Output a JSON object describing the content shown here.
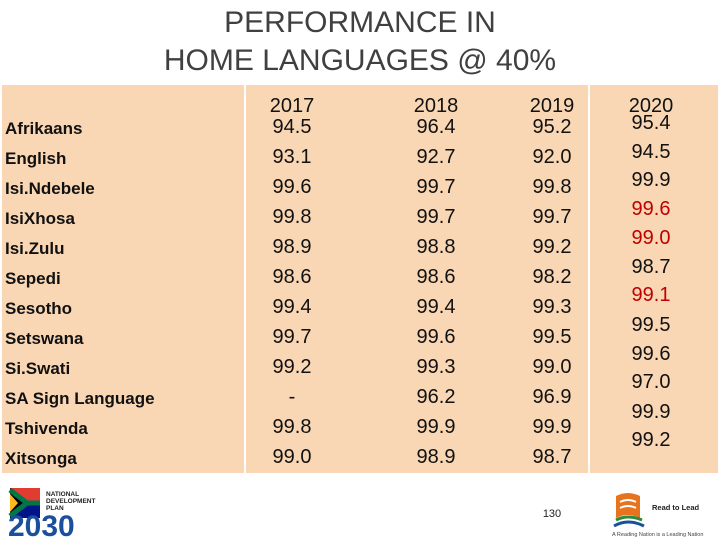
{
  "title": {
    "line1": "PERFORMANCE IN",
    "line2": "HOME LANGUAGES @ 40%"
  },
  "table": {
    "columns": [
      "2017",
      "2018",
      "2019",
      "2020"
    ],
    "rows": [
      {
        "language": "Afrikaans",
        "values": [
          "94.5",
          "96.4",
          "95.2",
          "95.4"
        ]
      },
      {
        "language": "English",
        "values": [
          "93.1",
          "92.7",
          "92.0",
          "94.5"
        ]
      },
      {
        "language": "Isi.Ndebele",
        "values": [
          "99.6",
          "99.7",
          "99.8",
          "99.9"
        ]
      },
      {
        "language": "IsiXhosa",
        "values": [
          "99.8",
          "99.7",
          "99.7",
          "99.6"
        ]
      },
      {
        "language": "Isi.Zulu",
        "values": [
          "98.9",
          "98.8",
          "99.2",
          "99.0"
        ]
      },
      {
        "language": "Sepedi",
        "values": [
          "98.6",
          "98.6",
          "98.2",
          "98.7"
        ]
      },
      {
        "language": "Sesotho",
        "values": [
          "99.4",
          "99.4",
          "99.3",
          "99.1"
        ]
      },
      {
        "language": "Setswana",
        "values": [
          "99.7",
          "99.6",
          "99.5",
          "99.5"
        ]
      },
      {
        "language": "Si.Swati",
        "values": [
          "99.2",
          "99.3",
          "99.0",
          "99.6"
        ]
      },
      {
        "language": "SA Sign Language",
        "values": [
          "-",
          "96.2",
          "96.9",
          "97.0"
        ]
      },
      {
        "language": "Tshivenda",
        "values": [
          "99.8",
          "99.9",
          "99.9",
          "99.9"
        ]
      },
      {
        "language": "Xitsonga",
        "values": [
          "99.0",
          "98.9",
          "98.7",
          "99.2"
        ]
      }
    ],
    "highlight_color": "#c00000"
  },
  "footer": {
    "page_number": "130",
    "ndp_logo": {
      "line1": "NATIONAL",
      "line2": "DEVELOPMENT",
      "line3": "PLAN",
      "year": "2030"
    },
    "rtl_logo": {
      "name": "Read to Lead",
      "tagline": "A Reading Nation is a Leading Nation"
    }
  }
}
